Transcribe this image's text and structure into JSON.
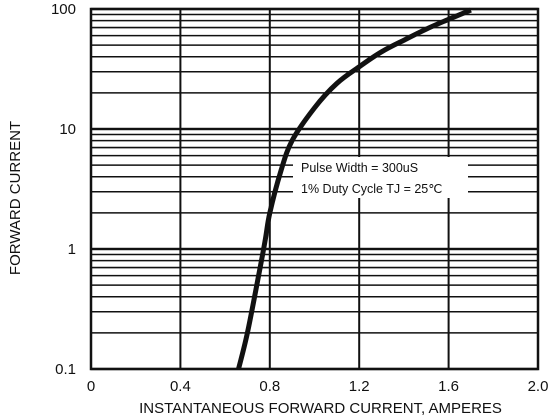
{
  "chart_data": {
    "type": "line",
    "title": "",
    "xlabel": "INSTANTANEOUS FORWARD CURRENT, AMPERES",
    "ylabel": "FORWARD CURRENT",
    "xlim": [
      0,
      2.0
    ],
    "ylim": [
      0.1,
      100
    ],
    "yscale": "log",
    "grid": true,
    "x_ticks": [
      "0",
      "0.4",
      "0.8",
      "1.2",
      "1.6",
      "2.0"
    ],
    "y_ticks": [
      "0.1",
      "1",
      "10",
      "100"
    ],
    "annotations": [
      "Pulse Width = 300uS",
      "1% Duty Cycle TJ = 25℃"
    ],
    "series": [
      {
        "color": "#111111",
        "x": [
          0.66,
          0.7,
          0.75,
          0.78,
          0.8,
          0.85,
          0.9,
          1.0,
          1.1,
          1.2,
          1.3,
          1.4,
          1.5,
          1.6,
          1.7
        ],
        "y": [
          0.1,
          0.2,
          0.6,
          1.2,
          2,
          4.5,
          8,
          15,
          24,
          33,
          44,
          55,
          68,
          82,
          98
        ]
      }
    ]
  }
}
